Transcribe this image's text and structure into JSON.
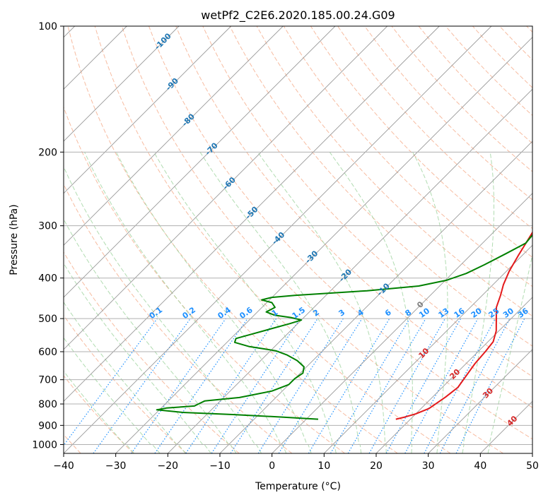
{
  "chart_data": {
    "type": "line",
    "subtype": "skew-T log-P diagram",
    "title": "wetPf2_C2E6.2020.185.00.24.G09",
    "xlabel": "Temperature (°C)",
    "ylabel": "Pressure (hPa)",
    "xlim": [
      -40,
      50
    ],
    "ylim": [
      1050,
      100
    ],
    "y_scale": "log",
    "grid": true,
    "x_ticks": [
      -40,
      -30,
      -20,
      -10,
      0,
      10,
      20,
      30,
      40,
      50
    ],
    "y_ticks": [
      100,
      200,
      300,
      400,
      500,
      600,
      700,
      800,
      900,
      1000
    ],
    "colors": {
      "temperature": "#e41a1c",
      "dewpoint": "#008000",
      "isotherm": "#999999",
      "dry_adiabat": "#f4a582",
      "moist_adiabat": "#9ed39e",
      "mixing_ratio": "#1e90ff",
      "isotherm_label": "#1f77b4",
      "adiabat_label": "#d62728"
    },
    "series": [
      {
        "name": "",
        "role": "temperature",
        "points": [
          [
            17.2,
            870
          ],
          [
            18.5,
            860
          ],
          [
            20,
            845
          ],
          [
            21.5,
            820
          ],
          [
            22.5,
            770
          ],
          [
            23,
            730
          ],
          [
            22.3,
            680
          ],
          [
            21.7,
            640
          ],
          [
            21.4,
            600
          ],
          [
            21,
            568
          ],
          [
            19.5,
            535
          ],
          [
            17.5,
            505
          ],
          [
            15,
            470
          ],
          [
            13.5,
            440
          ],
          [
            12,
            415
          ],
          [
            10.5,
            385
          ],
          [
            9.2,
            352
          ],
          [
            8,
            322
          ],
          [
            6.8,
            295
          ],
          [
            5.5,
            268
          ],
          [
            4,
            242
          ],
          [
            2,
            215
          ],
          [
            0.4,
            193
          ],
          [
            0.1,
            178
          ],
          [
            1.5,
            160
          ],
          [
            3,
            143
          ],
          [
            4.3,
            128
          ],
          [
            4.6,
            117
          ],
          [
            5.8,
            108
          ],
          [
            8.2,
            102
          ],
          [
            10.7,
            97
          ]
        ]
      },
      {
        "name": "",
        "role": "dewpoint",
        "points": [
          [
            2.3,
            870
          ],
          [
            -5,
            860
          ],
          [
            -15,
            848
          ],
          [
            -25,
            838
          ],
          [
            -30.5,
            826
          ],
          [
            -29,
            818
          ],
          [
            -24,
            809
          ],
          [
            -23.5,
            797
          ],
          [
            -23,
            787
          ],
          [
            -17,
            772
          ],
          [
            -12,
            745
          ],
          [
            -10,
            719
          ],
          [
            -10,
            696
          ],
          [
            -9.5,
            675
          ],
          [
            -10.5,
            652
          ],
          [
            -13,
            630
          ],
          [
            -16,
            611
          ],
          [
            -19,
            597
          ],
          [
            -21.5,
            591
          ],
          [
            -25,
            583
          ],
          [
            -28.5,
            570
          ],
          [
            -29,
            558
          ],
          [
            -27,
            546
          ],
          [
            -24.5,
            531
          ],
          [
            -21.5,
            514
          ],
          [
            -20,
            504
          ],
          [
            -22.5,
            497
          ],
          [
            -26,
            491
          ],
          [
            -28.3,
            482
          ],
          [
            -27.5,
            470
          ],
          [
            -29,
            458
          ],
          [
            -31.5,
            451
          ],
          [
            -30,
            445
          ],
          [
            -26,
            440
          ],
          [
            -13,
            429
          ],
          [
            -4,
            418
          ],
          [
            0.2,
            405
          ],
          [
            2.7,
            390
          ],
          [
            4.5,
            372
          ],
          [
            6.5,
            350
          ],
          [
            8.3,
            330
          ],
          [
            8,
            314
          ],
          [
            8.8,
            300
          ],
          [
            8.2,
            285
          ],
          [
            7,
            272
          ],
          [
            5.2,
            258
          ],
          [
            3.5,
            245
          ],
          [
            2,
            232
          ],
          [
            1,
            218
          ],
          [
            -0.5,
            205
          ],
          [
            -3,
            192
          ],
          [
            -5.5,
            180
          ],
          [
            -7,
            170
          ],
          [
            -7.2,
            160
          ],
          [
            -6.5,
            150
          ],
          [
            -5,
            140
          ],
          [
            -3.5,
            130
          ],
          [
            -3.5,
            123
          ],
          [
            -3,
            116
          ],
          [
            -2.5,
            110
          ],
          [
            -2,
            105
          ],
          [
            -1.5,
            100
          ]
        ]
      }
    ],
    "isotherm_labels": [
      "-100",
      "-90",
      "-80",
      "-70",
      "-60",
      "-50",
      "-40",
      "-30",
      "-20",
      "-10",
      "0",
      "10",
      "20",
      "30",
      "40"
    ],
    "mixing_ratio_labels": [
      "0.1",
      "0.2",
      "0.4",
      "0.6",
      "1",
      "1.5",
      "2",
      "3",
      "4",
      "6",
      "8",
      "10",
      "13",
      "16",
      "20",
      "25",
      "30",
      "36"
    ]
  }
}
